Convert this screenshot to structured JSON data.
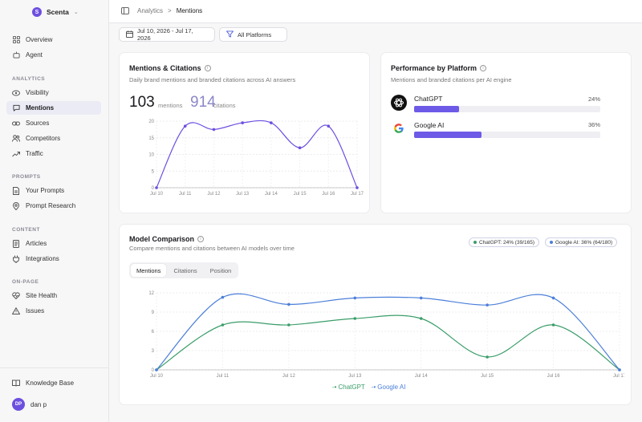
{
  "workspace": {
    "initial": "S",
    "name": "Scenta"
  },
  "sidebar": {
    "top_items": [
      {
        "label": "Overview",
        "icon": "grid-icon"
      },
      {
        "label": "Agent",
        "icon": "agent-icon"
      }
    ],
    "sections": [
      {
        "label": "ANALYTICS",
        "items": [
          {
            "label": "Visibility"
          },
          {
            "label": "Mentions"
          },
          {
            "label": "Sources"
          },
          {
            "label": "Competitors"
          },
          {
            "label": "Traffic"
          }
        ]
      },
      {
        "label": "PROMPTS",
        "items": [
          {
            "label": "Your Prompts"
          },
          {
            "label": "Prompt Research"
          }
        ]
      },
      {
        "label": "CONTENT",
        "items": [
          {
            "label": "Articles"
          },
          {
            "label": "Integrations"
          }
        ]
      },
      {
        "label": "ON-PAGE",
        "items": [
          {
            "label": "Site Health"
          },
          {
            "label": "Issues"
          }
        ]
      }
    ],
    "knowledge_base": "Knowledge Base",
    "user": {
      "initials": "DP",
      "name": "dan p"
    }
  },
  "breadcrumb": {
    "parent": "Analytics",
    "sep": ">",
    "current": "Mentions"
  },
  "filters": {
    "date_range": "Jul 10, 2026 - Jul 17, 2026",
    "platform": "All Platforms"
  },
  "mentions_card": {
    "title": "Mentions & Citations",
    "subtitle": "Daily brand mentions and branded citations across AI answers",
    "mentions_count": "103",
    "mentions_label": "mentions",
    "citations_count": "914",
    "citations_label": "citations"
  },
  "platform_card": {
    "title": "Performance by Platform",
    "subtitle": "Mentions and branded citations per AI engine",
    "platforms": [
      {
        "name": "ChatGPT",
        "pct_label": "24%",
        "value": 0.24
      },
      {
        "name": "Google AI",
        "pct_label": "36%",
        "value": 0.36
      }
    ]
  },
  "comparison_card": {
    "title": "Model Comparison",
    "subtitle": "Compare mentions and citations between AI models over time",
    "pills": [
      "ChatGPT: 24% (39/165)",
      "Google AI: 36% (64/180)"
    ],
    "tabs": [
      "Mentions",
      "Citations",
      "Position"
    ]
  },
  "chart_data": [
    {
      "type": "line",
      "x": [
        "Jul 10",
        "Jul 11",
        "Jul 12",
        "Jul 13",
        "Jul 14",
        "Jul 15",
        "Jul 16",
        "Jul 17"
      ],
      "series": [
        {
          "values": [
            0,
            18.5,
            17.5,
            19.5,
            19.5,
            12,
            18.5,
            0
          ],
          "color": "#6d4fe0"
        }
      ],
      "yticks": [
        0,
        5,
        10,
        15,
        20
      ],
      "ylim": [
        0,
        20
      ],
      "grid": true
    },
    {
      "type": "line",
      "x": [
        "Jul 10",
        "Jul 11",
        "Jul 12",
        "Jul 13",
        "Jul 14",
        "Jul 15",
        "Jul 16",
        "Jul 17"
      ],
      "series": [
        {
          "name": "ChatGPT",
          "values": [
            0,
            7,
            7,
            8,
            8,
            2,
            7,
            0
          ],
          "color": "#3a9d6a"
        },
        {
          "name": "Google AI",
          "values": [
            0,
            11.3,
            10.2,
            11.2,
            11.2,
            10.1,
            11.2,
            0
          ],
          "color": "#4c7fd9"
        }
      ],
      "yticks": [
        0,
        3,
        6,
        9,
        12
      ],
      "ylim": [
        0,
        12
      ],
      "grid": true,
      "legend": "bottom-center"
    }
  ],
  "colors": {
    "accent": "#6d4fe0",
    "bar": "#6d5ae6",
    "chatgpt": "#3a9d6a",
    "google": "#4c7fd9"
  }
}
